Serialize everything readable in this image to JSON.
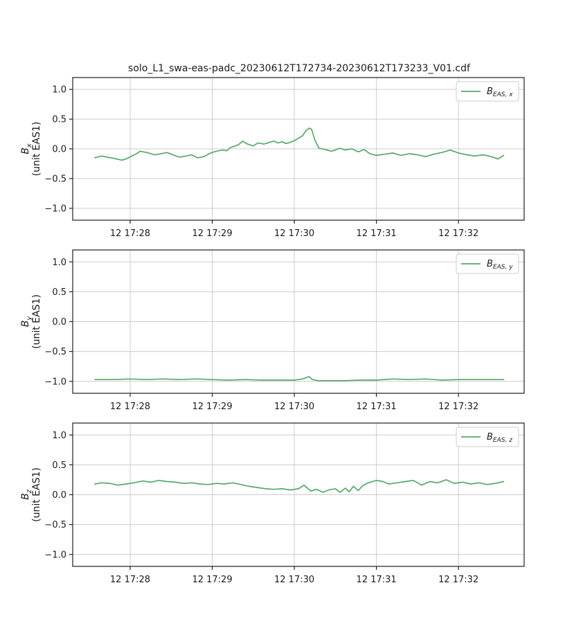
{
  "figure_title": "solo_L1_swa-eas-padc_20230612T172734-20230612T173233_V01.cdf",
  "colors": {
    "series": "#55a868",
    "grid": "#cccccc",
    "axis": "#262626"
  },
  "chart_data": [
    {
      "type": "line",
      "panel": "Bx",
      "ylabel_symbol": "B",
      "ylabel_sub": "x",
      "ylabel_unit": "(unit EAS1)",
      "legend": {
        "main": "B",
        "sub": "EAS, x",
        "placement": "top-right"
      },
      "xlim_minutes": [
        27.3,
        32.8
      ],
      "ylim": [
        -1.2,
        1.2
      ],
      "yticks": [
        1.0,
        0.5,
        0.0,
        -0.5,
        -1.0
      ],
      "ytick_labels": [
        "1.0",
        "0.5",
        "0.0",
        "−0.5",
        "−1.0"
      ],
      "xticks_minutes": [
        28,
        29,
        30,
        31,
        32
      ],
      "xtick_labels": [
        "12 17:28",
        "12 17:29",
        "12 17:30",
        "12 17:31",
        "12 17:32"
      ],
      "grid": true,
      "series": [
        {
          "name": "B_EAS,x",
          "x_minutes": [
            27.57,
            27.65,
            27.72,
            27.8,
            27.9,
            27.95,
            28.02,
            28.08,
            28.12,
            28.2,
            28.3,
            28.38,
            28.45,
            28.5,
            28.6,
            28.68,
            28.75,
            28.82,
            28.9,
            28.95,
            29.0,
            29.05,
            29.12,
            29.18,
            29.22,
            29.28,
            29.32,
            29.37,
            29.43,
            29.5,
            29.56,
            29.63,
            29.7,
            29.75,
            29.8,
            29.85,
            29.9,
            29.95,
            30.0,
            30.05,
            30.1,
            30.14,
            30.18,
            30.21,
            30.25,
            30.3,
            30.38,
            30.45,
            30.5,
            30.55,
            30.62,
            30.7,
            30.78,
            30.85,
            30.92,
            31.0,
            31.1,
            31.2,
            31.3,
            31.4,
            31.5,
            31.6,
            31.7,
            31.8,
            31.9,
            32.0,
            32.1,
            32.2,
            32.3,
            32.4,
            32.48,
            32.55
          ],
          "values": [
            -0.15,
            -0.12,
            -0.14,
            -0.16,
            -0.19,
            -0.17,
            -0.12,
            -0.08,
            -0.04,
            -0.06,
            -0.1,
            -0.08,
            -0.06,
            -0.09,
            -0.14,
            -0.12,
            -0.1,
            -0.15,
            -0.13,
            -0.09,
            -0.06,
            -0.04,
            -0.02,
            -0.03,
            0.02,
            0.05,
            0.07,
            0.13,
            0.08,
            0.05,
            0.1,
            0.08,
            0.11,
            0.13,
            0.1,
            0.12,
            0.09,
            0.11,
            0.14,
            0.18,
            0.22,
            0.3,
            0.35,
            0.33,
            0.15,
            0.01,
            -0.01,
            -0.04,
            -0.02,
            0.01,
            -0.02,
            0.0,
            -0.05,
            -0.01,
            -0.08,
            -0.11,
            -0.09,
            -0.07,
            -0.11,
            -0.08,
            -0.1,
            -0.13,
            -0.09,
            -0.06,
            -0.02,
            -0.07,
            -0.1,
            -0.12,
            -0.1,
            -0.13,
            -0.17,
            -0.11
          ]
        }
      ]
    },
    {
      "type": "line",
      "panel": "By",
      "ylabel_symbol": "B",
      "ylabel_sub": "y",
      "ylabel_unit": "(unit EAS1)",
      "legend": {
        "main": "B",
        "sub": "EAS, y",
        "placement": "top-right"
      },
      "xlim_minutes": [
        27.3,
        32.8
      ],
      "ylim": [
        -1.2,
        1.2
      ],
      "yticks": [
        1.0,
        0.5,
        0.0,
        -0.5,
        -1.0
      ],
      "ytick_labels": [
        "1.0",
        "0.5",
        "0.0",
        "−0.5",
        "−1.0"
      ],
      "xticks_minutes": [
        28,
        29,
        30,
        31,
        32
      ],
      "xtick_labels": [
        "12 17:28",
        "12 17:29",
        "12 17:30",
        "12 17:31",
        "12 17:32"
      ],
      "grid": true,
      "series": [
        {
          "name": "B_EAS,y",
          "x_minutes": [
            27.57,
            27.8,
            28.0,
            28.2,
            28.4,
            28.6,
            28.8,
            29.0,
            29.2,
            29.4,
            29.6,
            29.8,
            30.0,
            30.1,
            30.18,
            30.22,
            30.3,
            30.4,
            30.6,
            30.8,
            31.0,
            31.2,
            31.4,
            31.6,
            31.8,
            32.0,
            32.2,
            32.4,
            32.55
          ],
          "values": [
            -0.97,
            -0.97,
            -0.96,
            -0.97,
            -0.96,
            -0.97,
            -0.96,
            -0.97,
            -0.98,
            -0.97,
            -0.98,
            -0.98,
            -0.98,
            -0.96,
            -0.92,
            -0.97,
            -0.99,
            -0.99,
            -0.99,
            -0.98,
            -0.98,
            -0.96,
            -0.97,
            -0.96,
            -0.98,
            -0.97,
            -0.97,
            -0.97,
            -0.97
          ]
        }
      ]
    },
    {
      "type": "line",
      "panel": "Bz",
      "ylabel_symbol": "B",
      "ylabel_sub": "z",
      "ylabel_unit": "(unit EAS1)",
      "legend": {
        "main": "B",
        "sub": "EAS, z",
        "placement": "top-right"
      },
      "xlim_minutes": [
        27.3,
        32.8
      ],
      "ylim": [
        -1.2,
        1.2
      ],
      "yticks": [
        1.0,
        0.5,
        0.0,
        -0.5,
        -1.0
      ],
      "ytick_labels": [
        "1.0",
        "0.5",
        "0.0",
        "−0.5",
        "−1.0"
      ],
      "xticks_minutes": [
        28,
        29,
        30,
        31,
        32
      ],
      "xtick_labels": [
        "12 17:28",
        "12 17:29",
        "12 17:30",
        "12 17:31",
        "12 17:32"
      ],
      "grid": true,
      "series": [
        {
          "name": "B_EAS,z",
          "x_minutes": [
            27.57,
            27.65,
            27.75,
            27.85,
            27.95,
            28.05,
            28.15,
            28.25,
            28.35,
            28.45,
            28.55,
            28.65,
            28.75,
            28.85,
            28.95,
            29.05,
            29.15,
            29.25,
            29.35,
            29.45,
            29.55,
            29.65,
            29.75,
            29.85,
            29.95,
            30.05,
            30.12,
            30.2,
            30.27,
            30.35,
            30.42,
            30.5,
            30.56,
            30.62,
            30.67,
            30.72,
            30.78,
            30.83,
            30.9,
            31.0,
            31.08,
            31.15,
            31.25,
            31.35,
            31.45,
            31.55,
            31.65,
            31.75,
            31.85,
            31.95,
            32.05,
            32.15,
            32.25,
            32.35,
            32.45,
            32.55
          ],
          "values": [
            0.18,
            0.2,
            0.19,
            0.16,
            0.18,
            0.2,
            0.23,
            0.21,
            0.24,
            0.22,
            0.21,
            0.19,
            0.2,
            0.18,
            0.17,
            0.19,
            0.18,
            0.2,
            0.17,
            0.14,
            0.12,
            0.1,
            0.09,
            0.1,
            0.08,
            0.1,
            0.16,
            0.06,
            0.09,
            0.04,
            0.08,
            0.1,
            0.04,
            0.11,
            0.05,
            0.14,
            0.07,
            0.15,
            0.2,
            0.24,
            0.22,
            0.18,
            0.2,
            0.22,
            0.24,
            0.16,
            0.22,
            0.2,
            0.25,
            0.19,
            0.21,
            0.18,
            0.2,
            0.17,
            0.19,
            0.22
          ]
        }
      ]
    }
  ]
}
